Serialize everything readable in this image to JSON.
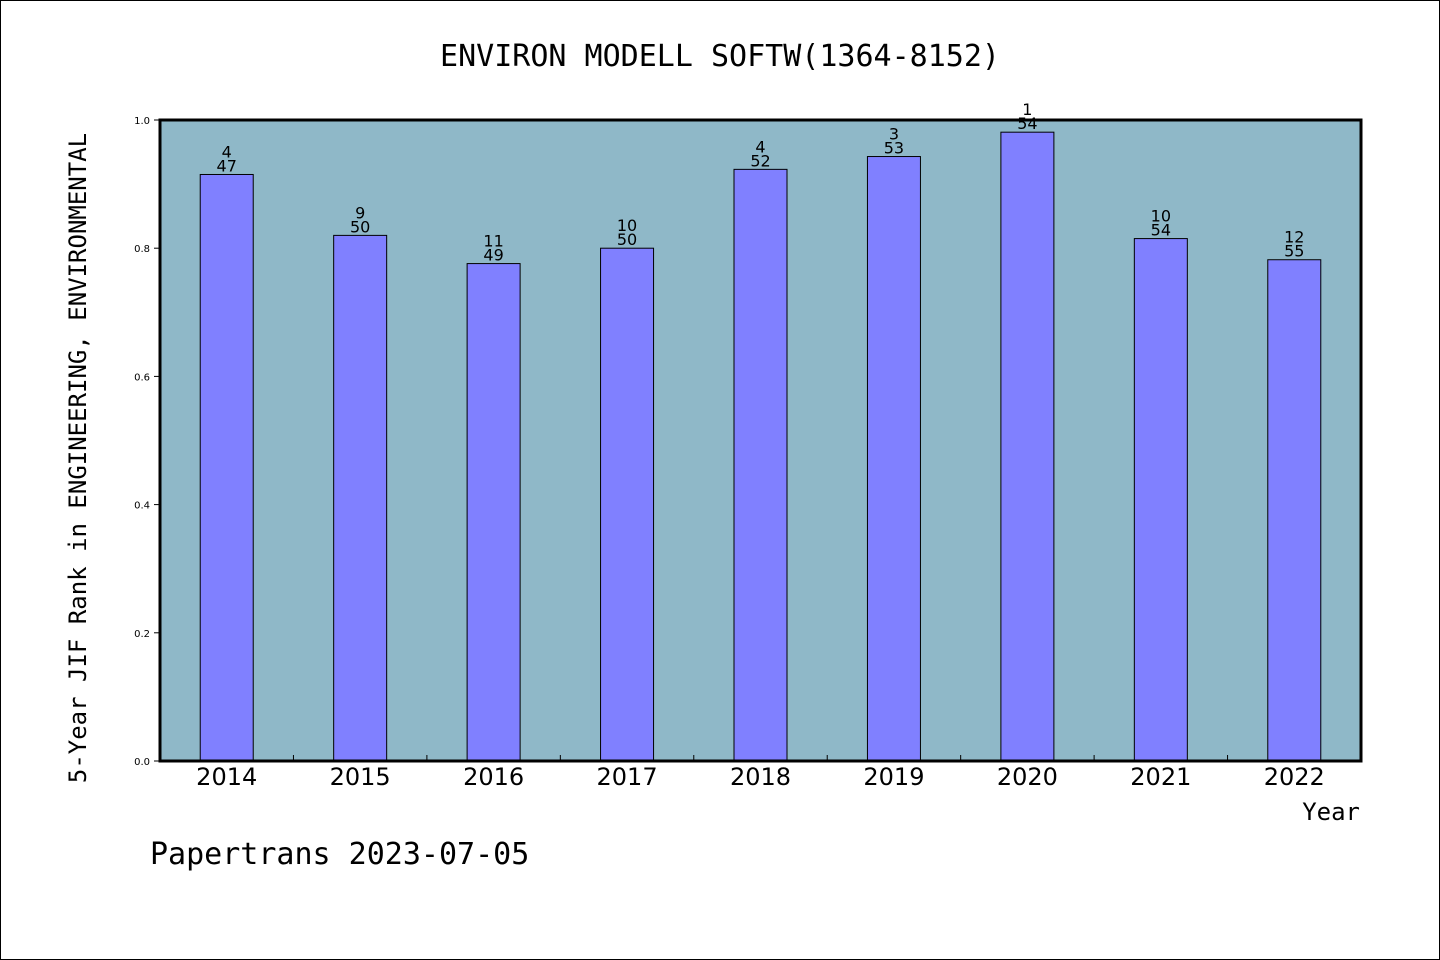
{
  "chart_data": {
    "type": "bar",
    "title": "ENVIRON MODELL SOFTW(1364-8152)",
    "xlabel": "Year",
    "ylabel": "5-Year JIF Rank in ENGINEERING, ENVIRONMENTAL",
    "ylim": [
      0,
      1.0
    ],
    "yticks": [
      "0.0",
      "0.2",
      "0.4",
      "0.6",
      "0.8",
      "1.0"
    ],
    "grid": false,
    "categories": [
      "2014",
      "2015",
      "2016",
      "2017",
      "2018",
      "2019",
      "2020",
      "2021",
      "2022"
    ],
    "values": [
      0.915,
      0.82,
      0.776,
      0.8,
      0.923,
      0.943,
      0.981,
      0.815,
      0.782
    ],
    "rank_labels": [
      "4",
      "9",
      "11",
      "10",
      "4",
      "3",
      "1",
      "10",
      "12"
    ],
    "total_labels": [
      "47",
      "50",
      "49",
      "50",
      "52",
      "53",
      "54",
      "54",
      "55"
    ],
    "colors": {
      "plot_background": "#8fb8c8",
      "bar_fill": "#8080ff",
      "bar_stroke": "#000000"
    }
  },
  "footer": {
    "credit": "Papertrans 2023-07-05"
  }
}
